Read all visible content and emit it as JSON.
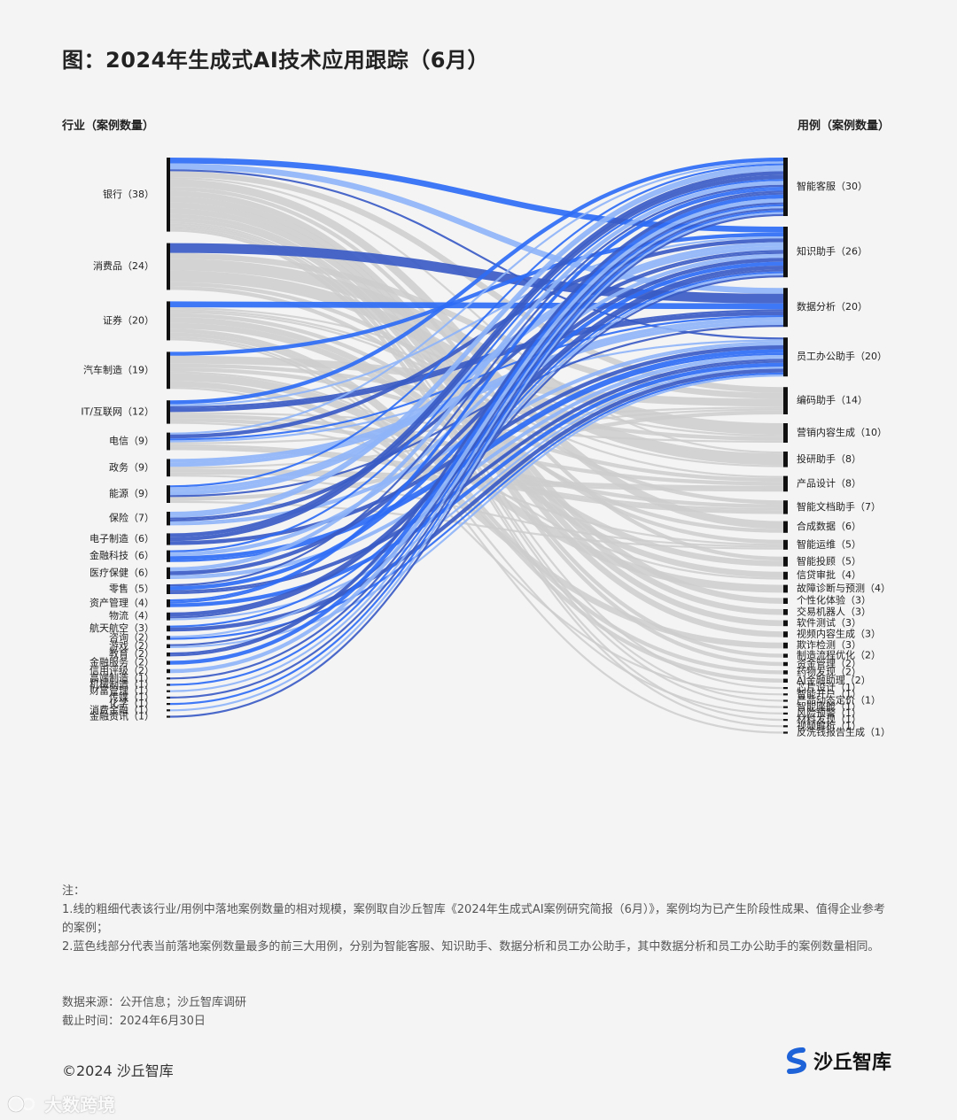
{
  "title": "图：2024年生成式AI技术应用跟踪（6月）",
  "left_header": "行业（案例数量）",
  "right_header": "用例（案例数量）",
  "colors": {
    "background": "#f4f4f4",
    "gray_link": "#cccccc",
    "blue_dark": "#3a5bc4",
    "blue_mid": "#2f6df5",
    "blue_light": "#8fb4f7",
    "node_bar": "#111111",
    "brand_blue": "#1f63d9"
  },
  "chart_data": {
    "type": "sankey",
    "sources": [
      {
        "name": "银行",
        "value": 38,
        "label": "银行（38）"
      },
      {
        "name": "消费品",
        "value": 24,
        "label": "消费品（24）"
      },
      {
        "name": "证券",
        "value": 20,
        "label": "证券（20）"
      },
      {
        "name": "汽车制造",
        "value": 19,
        "label": "汽车制造（19）"
      },
      {
        "name": "IT/互联网",
        "value": 12,
        "label": "IT/互联网（12）"
      },
      {
        "name": "电信",
        "value": 9,
        "label": "电信（9）"
      },
      {
        "name": "政务",
        "value": 9,
        "label": "政务（9）"
      },
      {
        "name": "能源",
        "value": 9,
        "label": "能源（9）"
      },
      {
        "name": "保险",
        "value": 7,
        "label": "保险（7）"
      },
      {
        "name": "电子制造",
        "value": 6,
        "label": "电子制造（6）"
      },
      {
        "name": "金融科技",
        "value": 6,
        "label": "金融科技（6）"
      },
      {
        "name": "医疗保健",
        "value": 6,
        "label": "医疗保健（6）"
      },
      {
        "name": "零售",
        "value": 5,
        "label": "零售（5）"
      },
      {
        "name": "资产管理",
        "value": 4,
        "label": "资产管理（4）"
      },
      {
        "name": "物流",
        "value": 4,
        "label": "物流（4）"
      },
      {
        "name": "航天航空",
        "value": 3,
        "label": "航天航空（3）"
      },
      {
        "name": "咨询",
        "value": 2,
        "label": "咨询（2）"
      },
      {
        "name": "游戏",
        "value": 2,
        "label": "游戏（2）"
      },
      {
        "name": "教育",
        "value": 2,
        "label": "教育（2）"
      },
      {
        "name": "金融服务",
        "value": 2,
        "label": "金融服务（2）"
      },
      {
        "name": "信用评级",
        "value": 2,
        "label": "信用评级（2）"
      },
      {
        "name": "高端制造",
        "value": 1,
        "label": "高端制造（1）"
      },
      {
        "name": "机械制造",
        "value": 1,
        "label": "机械制造（1）"
      },
      {
        "name": "财富管理",
        "value": 1,
        "label": "财富管理（1）"
      },
      {
        "name": "传媒",
        "value": 1,
        "label": "传媒（1）"
      },
      {
        "name": "化学",
        "value": 1,
        "label": "化学（1）"
      },
      {
        "name": "消费金融",
        "value": 1,
        "label": "消费金融（1）"
      },
      {
        "name": "金融资讯",
        "value": 1,
        "label": "金融资讯（1）"
      }
    ],
    "targets": [
      {
        "name": "智能客服",
        "value": 30,
        "label": "智能客服（30）"
      },
      {
        "name": "知识助手",
        "value": 26,
        "label": "知识助手（26）"
      },
      {
        "name": "数据分析",
        "value": 20,
        "label": "数据分析（20）"
      },
      {
        "name": "员工办公助手",
        "value": 20,
        "label": "员工办公助手（20）"
      },
      {
        "name": "编码助手",
        "value": 14,
        "label": "编码助手（14）"
      },
      {
        "name": "营销内容生成",
        "value": 10,
        "label": "营销内容生成（10）"
      },
      {
        "name": "投研助手",
        "value": 8,
        "label": "投研助手（8）"
      },
      {
        "name": "产品设计",
        "value": 8,
        "label": "产品设计（8）"
      },
      {
        "name": "智能文档助手",
        "value": 7,
        "label": "智能文档助手（7）"
      },
      {
        "name": "合成数据",
        "value": 6,
        "label": "合成数据（6）"
      },
      {
        "name": "智能运维",
        "value": 5,
        "label": "智能运维（5）"
      },
      {
        "name": "智能投顾",
        "value": 5,
        "label": "智能投顾（5）"
      },
      {
        "name": "信贷审批",
        "value": 4,
        "label": "信贷审批（4）"
      },
      {
        "name": "故障诊断与预测",
        "value": 4,
        "label": "故障诊断与预测（4）"
      },
      {
        "name": "个性化体验",
        "value": 3,
        "label": "个性化体验（3）"
      },
      {
        "name": "交易机器人",
        "value": 3,
        "label": "交易机器人（3）"
      },
      {
        "name": "软件测试",
        "value": 3,
        "label": "软件测试（3）"
      },
      {
        "name": "视频内容生成",
        "value": 3,
        "label": "视频内容生成（3）"
      },
      {
        "name": "欺诈检测",
        "value": 3,
        "label": "欺诈检测（3）"
      },
      {
        "name": "制造流程优化",
        "value": 2,
        "label": "制造流程优化（2）"
      },
      {
        "name": "资金管理",
        "value": 2,
        "label": "资金管理（2）"
      },
      {
        "name": "药物发现",
        "value": 2,
        "label": "药物发现（2）"
      },
      {
        "name": "AI金融助理",
        "value": 2,
        "label": "AI金融助理（2）"
      },
      {
        "name": "芯片设计",
        "value": 1,
        "label": "芯片设计（1）"
      },
      {
        "name": "智能开户",
        "value": 1,
        "label": "智能开户（1）"
      },
      {
        "name": "产品动态定价",
        "value": 1,
        "label": "产品动态定价（1）"
      },
      {
        "name": "智能座舱",
        "value": 1,
        "label": "智能座舱（1）"
      },
      {
        "name": "风险预警",
        "value": 1,
        "label": "风险预警（1）"
      },
      {
        "name": "材料发现",
        "value": 1,
        "label": "材料发现（1）"
      },
      {
        "name": "视频解析",
        "value": 1,
        "label": "视频解析（1）"
      },
      {
        "name": "反洗钱报告生成",
        "value": 1,
        "label": "反洗钱报告生成（1）"
      }
    ]
  },
  "notes": {
    "heading": "注：",
    "line1": "1.线的粗细代表该行业/用例中落地案例数量的相对规模，案例取自沙丘智库《2024年生成式AI案例研究简报（6月）》，案例均为已产生阶段性成果、值得企业参考的案例；",
    "line2": "2.蓝色线部分代表当前落地案例数量最多的前三大用例，分别为智能客服、知识助手、数据分析和员工办公助手，其中数据分析和员工办公助手的案例数量相同。"
  },
  "source": {
    "line1": "数据来源：公开信息；沙丘智库调研",
    "line2": "截止时间：2024年6月30日"
  },
  "footer": {
    "copyright": "©2024 沙丘智库",
    "brand": "沙丘智库",
    "watermark": "大数跨境"
  }
}
